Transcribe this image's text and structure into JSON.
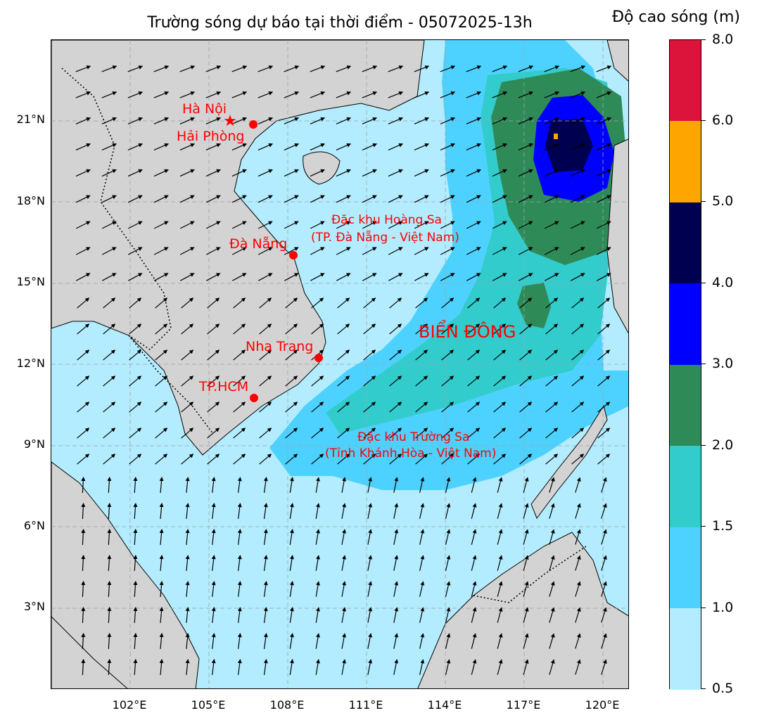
{
  "title": "Trường sóng dự báo tại thời điểm - 05072025-13h",
  "colorbar": {
    "title": "Độ cao sóng (m)",
    "levels": [
      "0.5",
      "1.0",
      "1.5",
      "2.0",
      "3.0",
      "4.0",
      "5.0",
      "6.0",
      "8.0"
    ],
    "colors": [
      "#b3ecff",
      "#4dd2ff",
      "#33cccc",
      "#2e8b57",
      "#0000ff",
      "#000050",
      "#ffa500",
      "#dc143c"
    ]
  },
  "axes": {
    "lat_labels": [
      "21°N",
      "18°N",
      "15°N",
      "12°N",
      "9°N",
      "6°N",
      "3°N"
    ],
    "lon_labels": [
      "102°E",
      "105°E",
      "108°E",
      "111°E",
      "114°E",
      "117°E",
      "120°E"
    ]
  },
  "cities": {
    "hanoi": "Hà Nội",
    "haiphong": "Hải Phòng",
    "danang": "Đà Nẵng",
    "nhatrang": "Nha Trang",
    "hcm": "TP.HCM"
  },
  "regions": {
    "hoangsa_line1": "Đặc khu Hoàng Sa",
    "hoangsa_line2": "(TP. Đà Nẵng - Việt Nam)",
    "truongsa_line1": "Đặc khu Trường Sa",
    "truongsa_line2": "(Tỉnh Khánh Hòa - Việt Nam)",
    "biendong": "BIỂN ĐÔNG"
  },
  "colors": {
    "land": "#d3d3d3",
    "label": "#ff0000",
    "grid": "#9aa5ad"
  }
}
